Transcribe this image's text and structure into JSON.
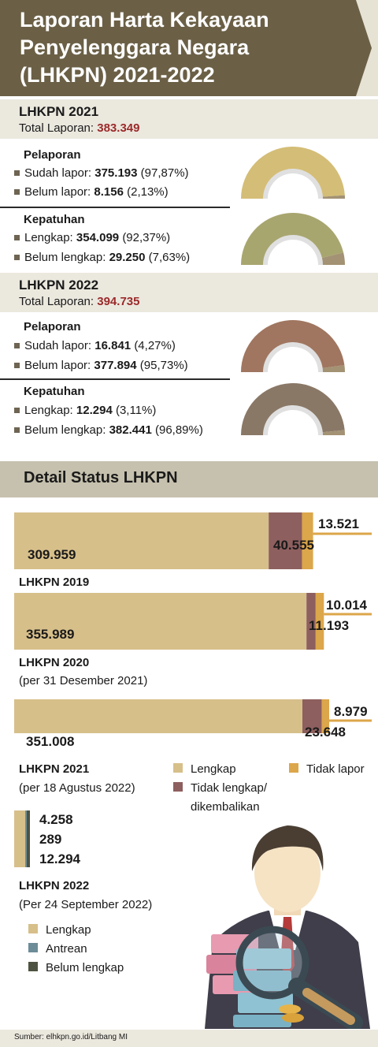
{
  "header": {
    "title_line1": "Laporan Harta Kekayaan",
    "title_line2": "Penyelenggara Negara",
    "title_line3": "(LHKPN) 2021-2022"
  },
  "lhkpn2021": {
    "title": "LHKPN 2021",
    "total_label": "Total Laporan:",
    "total_value": "383.349",
    "pelaporan": {
      "title": "Pelaporan",
      "row1_label": "Sudah lapor:",
      "row1_value": "375.193",
      "row1_pct": "(97,87%)",
      "row2_label": "Belum lapor:",
      "row2_value": "8.156",
      "row2_pct": "(2,13%)",
      "share": 0.9787,
      "color": "#d4bd76"
    },
    "kepatuhan": {
      "title": "Kepatuhan",
      "row1_label": "Lengkap:",
      "row1_value": "354.099",
      "row1_pct": "(92,37%)",
      "row2_label": "Belum lengkap:",
      "row2_value": "29.250",
      "row2_pct": "(7,63%)",
      "share": 0.9237,
      "color": "#a8a66f"
    }
  },
  "lhkpn2022": {
    "title": "LHKPN 2022",
    "total_label": "Total Laporan:",
    "total_value": "394.735",
    "pelaporan": {
      "title": "Pelaporan",
      "row1_label": "Sudah lapor:",
      "row1_value": "16.841",
      "row1_pct": "(4,27%)",
      "row2_label": "Belum lapor:",
      "row2_value": "377.894",
      "row2_pct": "(95,73%)",
      "share": 0.9573,
      "color": "#a07660"
    },
    "kepatuhan": {
      "title": "Kepatuhan",
      "row1_label": "Lengkap:",
      "row1_value": "12.294",
      "row1_pct": "(3,11%)",
      "row2_label": "Belum lengkap:",
      "row2_value": "382.441",
      "row2_pct": "(96,89%)",
      "share": 0.9689,
      "color": "#8a7866"
    }
  },
  "detail": {
    "title": "Detail Status LHKPN",
    "rows": [
      {
        "label": "LHKPN 2019",
        "sub": "",
        "lengkap": "309.959",
        "tidak_lengkap": "40.555",
        "tidak_lapor": "13.521"
      },
      {
        "label": "LHKPN 2020",
        "sub": "(per 31 Desember 2021)",
        "lengkap": "355.989",
        "tidak_lengkap": "11.193",
        "tidak_lapor": "10.014"
      },
      {
        "label": "LHKPN 2021",
        "sub": "(per 18 Agustus 2022)",
        "lengkap": "351.008",
        "tidak_lengkap": "23.648",
        "tidak_lapor": "8.979"
      }
    ],
    "legend": {
      "lengkap": "Lengkap",
      "tidak_lengkap_1": "Tidak lengkap/",
      "tidak_lengkap_2": "dikembalikan",
      "tidak_lapor": "Tidak lapor"
    },
    "row2022": {
      "label": "LHKPN 2022",
      "sub": "(Per 24 September 2022)",
      "lengkap": "4.258",
      "antrean": "289",
      "belum_lengkap": "12.294",
      "legend_lengkap": "Lengkap",
      "legend_antrean": "Antrean",
      "legend_belum": "Belum lengkap"
    }
  },
  "colors": {
    "header": "#6b6046",
    "lengkap": "#d7bf8a",
    "tidak_lengkap": "#8d5f5e",
    "tidak_lapor": "#dca64a",
    "antrean": "#6c8c98",
    "belum_lengkap": "#4d5340"
  },
  "footer": {
    "source": "Sumber: elhkpn.go.id/Litbang MI"
  }
}
